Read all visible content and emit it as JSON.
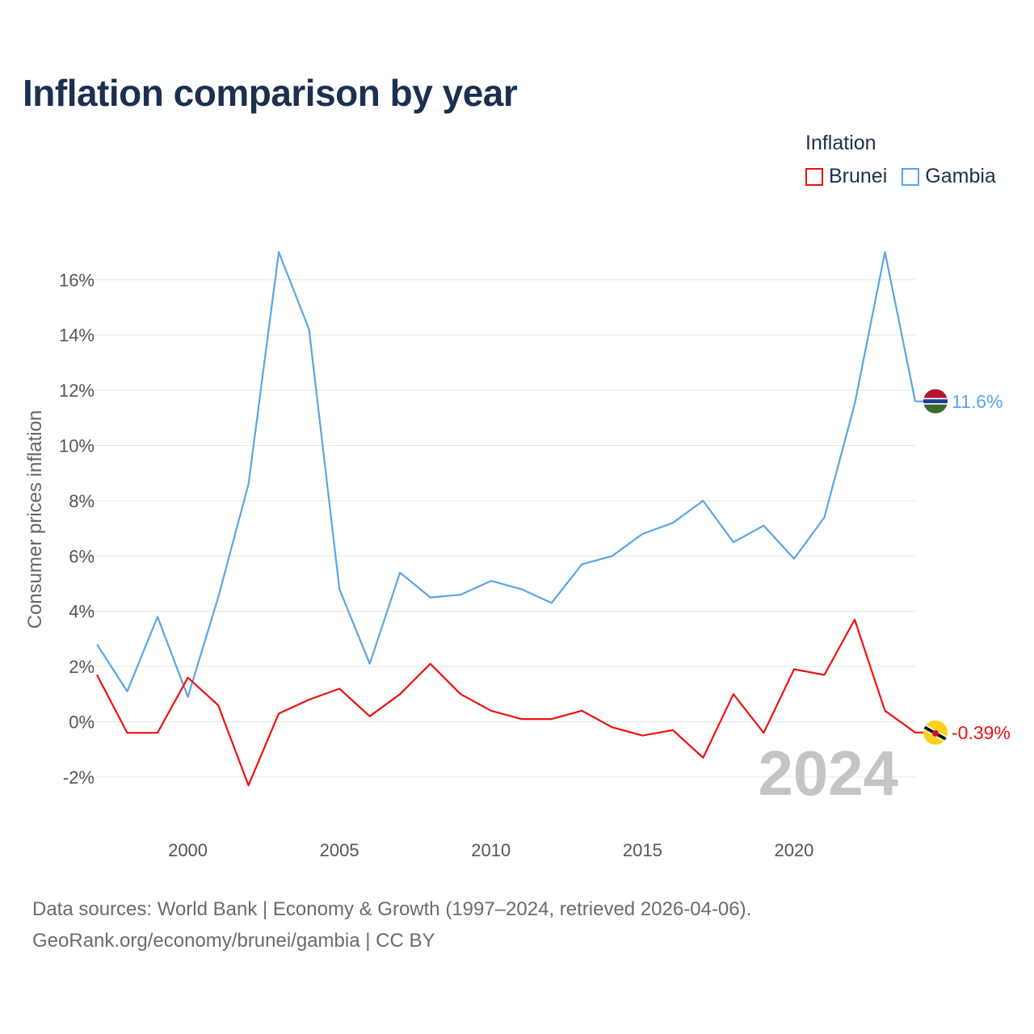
{
  "title": "Inflation comparison by year",
  "legend": {
    "title": "Inflation",
    "items": [
      {
        "name": "Brunei",
        "color": "#ee1111"
      },
      {
        "name": "Gambia",
        "color": "#5aa5e6"
      }
    ]
  },
  "footer": {
    "line1": "Data sources: World Bank | Economy & Growth (1997–2024, retrieved 2026-04-06).",
    "line2": "GeoRank.org/economy/brunei/gambia | CC BY"
  },
  "chart_data": {
    "type": "line",
    "title": "Inflation comparison by year",
    "xlabel": "",
    "ylabel": "Consumer prices inflation",
    "xlim": [
      1997,
      2024
    ],
    "ylim": [
      -3,
      17
    ],
    "y_ticks": [
      -2,
      0,
      2,
      4,
      6,
      8,
      10,
      12,
      14,
      16
    ],
    "y_tick_labels": [
      "-2%",
      "0%",
      "2%",
      "4%",
      "6%",
      "8%",
      "10%",
      "12%",
      "14%",
      "16%"
    ],
    "x_ticks": [
      2000,
      2005,
      2010,
      2015,
      2020
    ],
    "x_tick_labels": [
      "2000",
      "2005",
      "2010",
      "2015",
      "2020"
    ],
    "grid": true,
    "legend_position": "top-right",
    "current_year_label": "2024",
    "x": [
      1997,
      1998,
      1999,
      2000,
      2001,
      2002,
      2003,
      2004,
      2005,
      2006,
      2007,
      2008,
      2009,
      2010,
      2011,
      2012,
      2013,
      2014,
      2015,
      2016,
      2017,
      2018,
      2019,
      2020,
      2021,
      2022,
      2023,
      2024
    ],
    "series": [
      {
        "name": "Gambia",
        "color": "#5aa5e6",
        "end_label": "11.6%",
        "flag": "gambia-flag-icon",
        "values": [
          2.8,
          1.1,
          3.8,
          0.9,
          4.5,
          8.6,
          17.0,
          14.2,
          4.8,
          2.1,
          5.4,
          4.5,
          4.6,
          5.1,
          4.8,
          4.3,
          5.7,
          6.0,
          6.8,
          7.2,
          8.0,
          6.5,
          7.1,
          5.9,
          7.4,
          11.5,
          17.0,
          11.6
        ]
      },
      {
        "name": "Brunei",
        "color": "#ee1111",
        "end_label": "-0.39%",
        "flag": "brunei-flag-icon",
        "values": [
          1.7,
          -0.4,
          -0.4,
          1.6,
          0.6,
          -2.3,
          0.3,
          0.8,
          1.2,
          0.2,
          1.0,
          2.1,
          1.0,
          0.4,
          0.1,
          0.1,
          0.4,
          -0.2,
          -0.5,
          -0.3,
          -1.3,
          1.0,
          -0.4,
          1.9,
          1.7,
          3.7,
          0.4,
          -0.39
        ]
      }
    ]
  }
}
